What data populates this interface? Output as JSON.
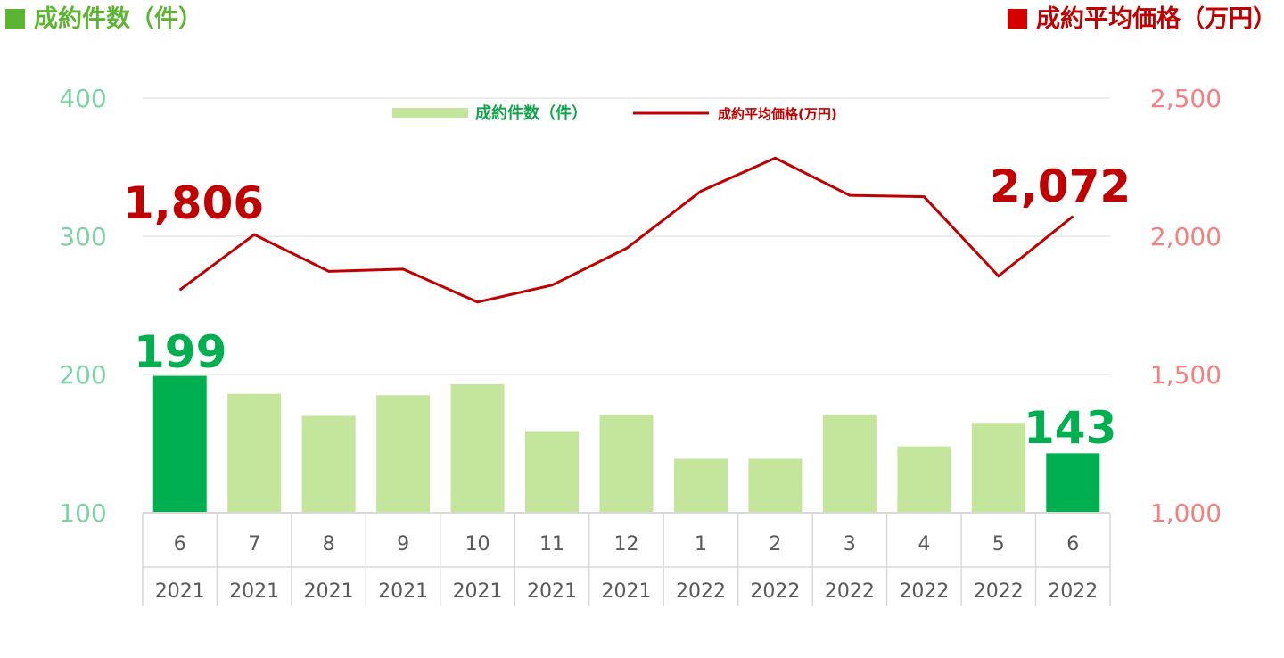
{
  "header": {
    "left_title": "成約件数（件）",
    "right_title": "成約平均価格（万円）",
    "left_color": "#5cb531",
    "right_color": "#c00000"
  },
  "legend": {
    "bar_label": "成約件数（件）",
    "line_label": "成約平均価格(万円)"
  },
  "annotations": {
    "first_bar": "199",
    "last_bar": "143",
    "first_line": "1,806",
    "last_line": "2,072"
  },
  "chart_data": {
    "type": "bar",
    "categories": [
      "6",
      "7",
      "8",
      "9",
      "10",
      "11",
      "12",
      "1",
      "2",
      "3",
      "4",
      "5",
      "6"
    ],
    "years": [
      "2021",
      "2021",
      "2021",
      "2021",
      "2021",
      "2021",
      "2021",
      "2022",
      "2022",
      "2022",
      "2022",
      "2022",
      "2022"
    ],
    "series": [
      {
        "name": "成約件数（件）",
        "type": "bar",
        "axis": "left",
        "values": [
          199,
          186,
          170,
          185,
          193,
          159,
          171,
          139,
          139,
          171,
          148,
          165,
          143
        ],
        "color": "#c3e69c",
        "highlight_color": "#00b050",
        "highlight_indices": [
          0,
          12
        ]
      },
      {
        "name": "成約平均価格(万円)",
        "type": "line",
        "axis": "right",
        "values": [
          1806,
          2006,
          1873,
          1881,
          1762,
          1823,
          1956,
          2163,
          2283,
          2148,
          2143,
          1856,
          2072
        ],
        "color": "#c00000"
      }
    ],
    "y_left": {
      "lim": [
        100,
        400
      ],
      "ticks": [
        "100",
        "200",
        "300",
        "400"
      ],
      "tick_values": [
        100,
        200,
        300,
        400
      ]
    },
    "y_right": {
      "lim": [
        1000,
        2500
      ],
      "ticks": [
        "1,000",
        "1,500",
        "2,000",
        "2,500"
      ],
      "tick_values": [
        1000,
        1500,
        2000,
        2500
      ]
    },
    "legend_position": "top-center",
    "grid": true
  }
}
